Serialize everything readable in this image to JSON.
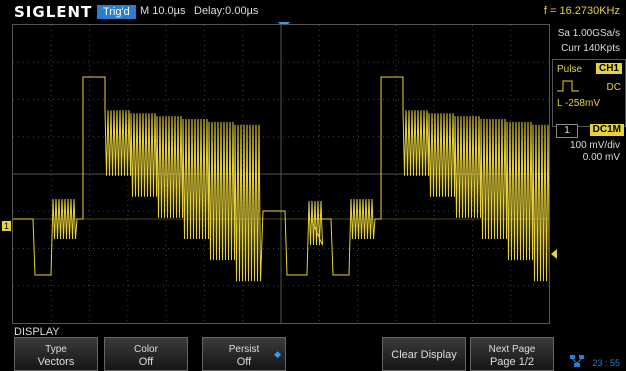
{
  "header": {
    "logo": "SIGLENT",
    "trigger_status": "Trig'd",
    "timebase": "M 10.0µs",
    "delay": "Delay:0.00µs",
    "frequency": "f = 16.2730KHz"
  },
  "acquisition": {
    "sample_rate": "Sa 1.00GSa/s",
    "memory_depth": "Curr 140Kpts"
  },
  "trigger": {
    "type": "Pulse",
    "source": "CH1",
    "coupling": "DC",
    "level": "L  -258mV"
  },
  "channel1": {
    "number": "1",
    "coupling": "DC1M",
    "vdiv": "100 mV/div",
    "offset": "0.00 mV"
  },
  "menu": {
    "title": "DISPLAY",
    "keys": [
      {
        "label": "Type",
        "value": "Vectors"
      },
      {
        "label": "Color",
        "value": "Off"
      },
      {
        "label": "Persist",
        "value": "Off"
      },
      {
        "label": "Clear Display"
      },
      {
        "label": "Next Page",
        "value": "Page 1/2"
      }
    ]
  },
  "clock": "23 : 55",
  "colors": {
    "trace": "#e8d23a",
    "accent": "#2a7ecf",
    "grid": "#444444"
  },
  "icons": [
    "trigger-position-icon",
    "channel-marker-icon",
    "trigger-level-icon",
    "pulse-icon",
    "spin-arrow-icon",
    "network-icon"
  ]
}
